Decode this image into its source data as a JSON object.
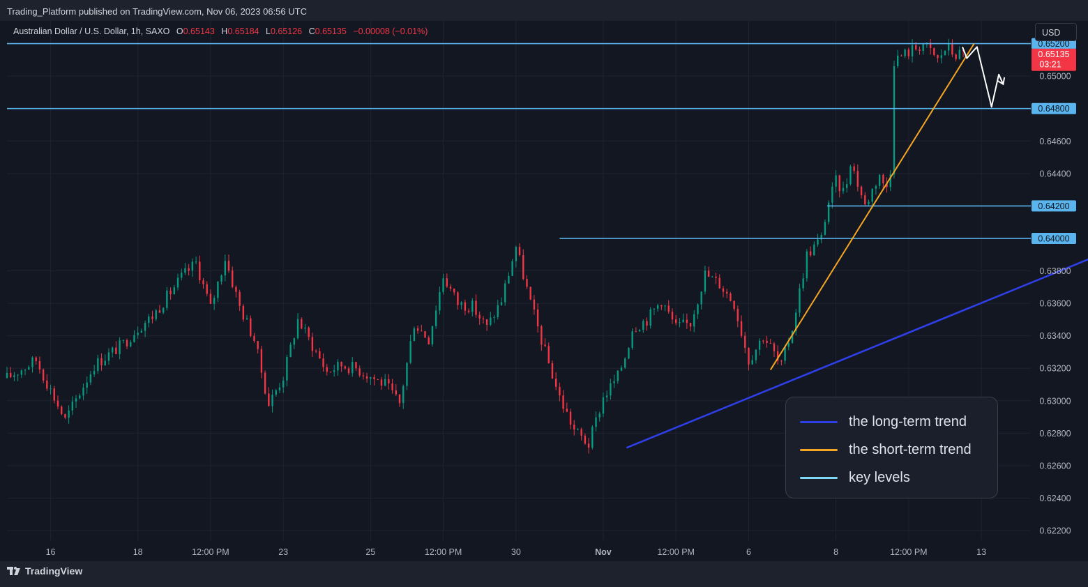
{
  "header": {
    "published": "Trading_Platform published on TradingView.com, Nov 06, 2023 06:56 UTC"
  },
  "ohlc": {
    "symbol": "Australian Dollar / U.S. Dollar, 1h, SAXO",
    "o_label": "O",
    "o": "0.65143",
    "h_label": "H",
    "h": "0.65184",
    "l_label": "L",
    "l": "0.65126",
    "c_label": "C",
    "c": "0.65135",
    "change": "−0.00008 (−0.01%)"
  },
  "currency": "USD",
  "brand": "TradingView",
  "colors": {
    "background": "#131722",
    "grid": "#1f2330",
    "up_candle": "#089981",
    "down_candle": "#f23645",
    "key_level": "#5ab4ee",
    "long_term": "#2f3fe8",
    "short_term": "#f5a623",
    "projection": "#ffffff",
    "legend_key": "#7fd8f5"
  },
  "legend": [
    {
      "label": "the long-term trend",
      "color": "#2f3fe8"
    },
    {
      "label": "the short-term trend",
      "color": "#f5a623"
    },
    {
      "label": "key levels",
      "color": "#7fd8f5"
    }
  ],
  "chart_data": {
    "type": "line",
    "title": "Australian Dollar / U.S. Dollar, 1h, SAXO",
    "x_tick_labels": [
      "16",
      "18",
      "12:00 PM",
      "23",
      "25",
      "12:00 PM",
      "30",
      "Nov",
      "12:00 PM",
      "6",
      "8",
      "12:00 PM",
      "13"
    ],
    "y_tick_labels": [
      "0.65000",
      "0.64600",
      "0.64400",
      "0.63800",
      "0.63600",
      "0.63400",
      "0.63200",
      "0.63000",
      "0.62800",
      "0.62600",
      "0.62400",
      "0.62200"
    ],
    "ylim": [
      0.6214,
      0.6534
    ],
    "xlim_days": [
      0,
      35.2
    ],
    "grid": true,
    "key_levels": [
      {
        "value": 0.652,
        "label": "0.65200",
        "start_day": 0
      },
      {
        "value": 0.648,
        "label": "0.64800",
        "start_day": 0
      },
      {
        "value": 0.642,
        "label": "0.64200",
        "start_day": 28.2
      },
      {
        "value": 0.64,
        "label": "0.64000",
        "start_day": 19
      }
    ],
    "current_price": {
      "value": 0.65135,
      "label": "0.65135",
      "countdown": "03:21"
    },
    "long_term_trend": {
      "x": [
        21.3,
        37.3
      ],
      "y": [
        0.6271,
        0.6388
      ]
    },
    "short_term_trend": {
      "x": [
        26.25,
        33.25
      ],
      "y": [
        0.6319,
        0.652
      ]
    },
    "projection": {
      "x": [
        32.85,
        33.0,
        33.35,
        33.85,
        34.1,
        34.25
      ],
      "y": [
        0.6518,
        0.6511,
        0.6518,
        0.6481,
        0.6501,
        0.6495
      ]
    },
    "price_path_days": [
      0,
      1,
      2,
      2.5,
      3,
      4,
      4.5,
      5,
      6,
      6.5,
      7,
      7.5,
      8,
      8.5,
      9,
      9.5,
      10,
      11,
      11.5,
      12,
      12.5,
      13,
      13.5,
      14,
      14.5,
      15,
      15.5,
      16,
      16.5,
      17,
      17.5,
      18,
      18.5,
      19,
      19.5,
      20,
      20.5,
      21,
      21.3,
      21.5,
      22,
      22.5,
      23,
      23.5,
      24,
      24.5,
      25,
      25.5,
      26,
      26.3,
      26.6,
      27,
      27.5,
      28,
      28.2,
      28.5,
      28.8,
      29,
      29.5,
      30,
      30.2,
      30.4,
      30.5,
      31,
      31.5,
      32,
      32.3,
      32.6,
      32.9
    ],
    "price_path": [
      0.6314,
      0.6325,
      0.6288,
      0.6305,
      0.6322,
      0.6335,
      0.6345,
      0.6352,
      0.6376,
      0.6385,
      0.6357,
      0.6388,
      0.6358,
      0.6338,
      0.6298,
      0.6315,
      0.635,
      0.6318,
      0.6322,
      0.632,
      0.6315,
      0.631,
      0.6298,
      0.6348,
      0.6338,
      0.6377,
      0.636,
      0.6358,
      0.6345,
      0.6362,
      0.6395,
      0.636,
      0.633,
      0.6302,
      0.6282,
      0.6273,
      0.6302,
      0.6315,
      0.633,
      0.6345,
      0.635,
      0.6362,
      0.6345,
      0.6348,
      0.6378,
      0.6372,
      0.636,
      0.6325,
      0.634,
      0.6332,
      0.632,
      0.6345,
      0.639,
      0.64,
      0.642,
      0.6435,
      0.6428,
      0.6448,
      0.642,
      0.644,
      0.6428,
      0.6445,
      0.651,
      0.6515,
      0.652,
      0.651,
      0.6518,
      0.6513,
      0.6514
    ]
  }
}
